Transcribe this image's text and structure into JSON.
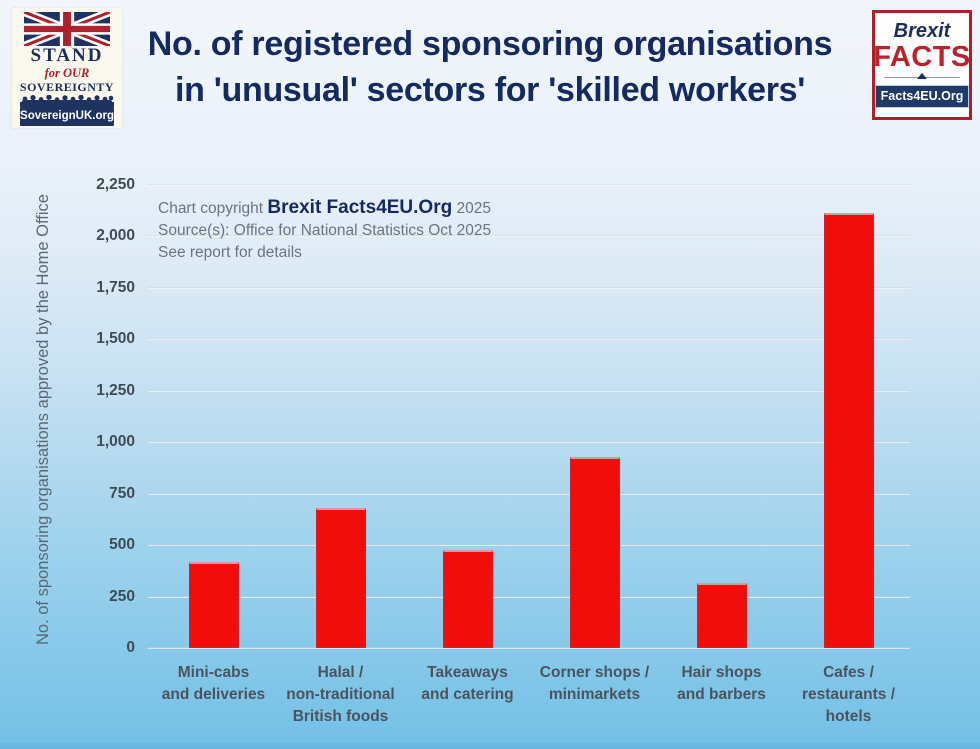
{
  "header": {
    "title_display": "No. of registered sponsoring organisations\nin 'unusual' sectors for 'skilled workers'",
    "logo_left": {
      "line1": "STAND",
      "line2": "for OUR",
      "line3": "SOVEREIGNTY",
      "url": "SovereignUK.org"
    },
    "logo_right": {
      "line1": "Brexit",
      "line2": "FACTS",
      "url": "Facts4EU.Org"
    }
  },
  "annotation": {
    "copyright_prefix": "Chart copyright ",
    "copyright_brand": "Brexit Facts4EU.Org",
    "copyright_year": " 2025",
    "source": "Source(s): Office for National Statistics Oct 2025",
    "note": "See report for details"
  },
  "chart_data": {
    "type": "bar",
    "title": "No. of registered sponsoring organisations in 'unusual' sectors for 'skilled workers'",
    "xlabel": "",
    "ylabel": "No. of sponsoring organisations approved by the Home Office",
    "categories": [
      "Mini-cabs and deliveries",
      "Halal / non-traditional British foods",
      "Takeaways and catering",
      "Corner shops / minimarkets",
      "Hair shops and barbers",
      "Cafes / restaurants / hotels"
    ],
    "category_labels": [
      "Mini-cabs\nand deliveries",
      "Halal /\nnon-traditional\nBritish foods",
      "Takeaways\nand catering",
      "Corner shops /\nminimarkets",
      "Hair shops\nand barbers",
      "Cafes /\nrestaurants /\nhotels"
    ],
    "values": [
      420,
      680,
      475,
      930,
      315,
      2115
    ],
    "ylim": [
      0,
      2250
    ],
    "yticks": [
      0,
      250,
      500,
      750,
      1000,
      1250,
      1500,
      1750,
      2000,
      2250
    ],
    "ytick_labels": [
      "0",
      "250",
      "500",
      "750",
      "1,000",
      "1,250",
      "1,500",
      "1,750",
      "2,000",
      "2,250"
    ],
    "grid": true,
    "legend": false,
    "bar_color": "#f20d0d"
  },
  "colors": {
    "title_text": "#142a60",
    "bar": "#f20d0d",
    "navy": "#1e335f",
    "logo_red": "#ae1f2a",
    "background_top": "#f2f6fb",
    "background_bottom": "#74c0e6",
    "gridline": "#dfe7ee",
    "axis_text": "#414b55",
    "muted_text": "#6b7580"
  }
}
